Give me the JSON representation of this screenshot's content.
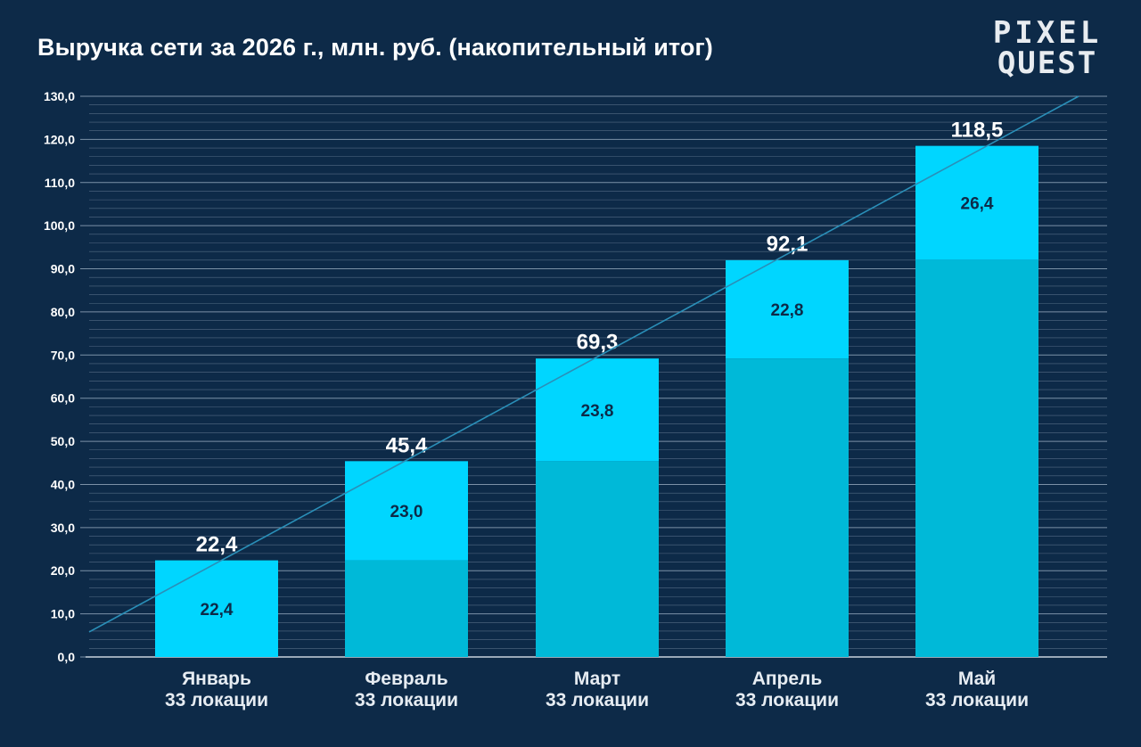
{
  "title": "Выручка сети за 2026 г., млн. руб. (накопительный итог)",
  "logo": {
    "line1": "PIXEL",
    "line2": "QUEST"
  },
  "colors": {
    "background": "#0d2a48",
    "bar_new": "#00d6ff",
    "bar_base": "#00b9d8",
    "grid": "#8fa3b8",
    "trend": "#2a8fb8",
    "text": "#ffffff",
    "inner_label": "#0d2a48"
  },
  "chart_data": {
    "type": "bar",
    "stacked": true,
    "title": "Выручка сети за 2026 г., млн. руб. (накопительный итог)",
    "categories": [
      "Январь",
      "Февраль",
      "Март",
      "Апрель",
      "Май"
    ],
    "category_sublabels": [
      "33 локации",
      "33 локации",
      "33 локации",
      "33 локации",
      "33 локации"
    ],
    "series": [
      {
        "values": [
          0,
          22.4,
          45.4,
          69.2,
          92.1
        ]
      },
      {
        "values": [
          22.4,
          23.0,
          23.8,
          22.8,
          26.4
        ]
      }
    ],
    "increment_labels": [
      "22,4",
      "23,0",
      "23,8",
      "22,8",
      "26,4"
    ],
    "totals": [
      22.4,
      45.4,
      69.3,
      92.1,
      118.5
    ],
    "total_labels": [
      "22,4",
      "45,4",
      "69,3",
      "92,1",
      "118,5"
    ],
    "ylim": [
      0,
      130
    ],
    "y_ticks": [
      "0,0",
      "10,0",
      "20,0",
      "30,0",
      "40,0",
      "50,0",
      "60,0",
      "70,0",
      "80,0",
      "90,0",
      "100,0",
      "110,0",
      "120,0",
      "130,0"
    ],
    "y_tick_values": [
      0,
      10,
      20,
      30,
      40,
      50,
      60,
      70,
      80,
      90,
      100,
      110,
      120,
      130
    ],
    "minor_grid_step": 2,
    "grid": true,
    "trend_line": true
  }
}
